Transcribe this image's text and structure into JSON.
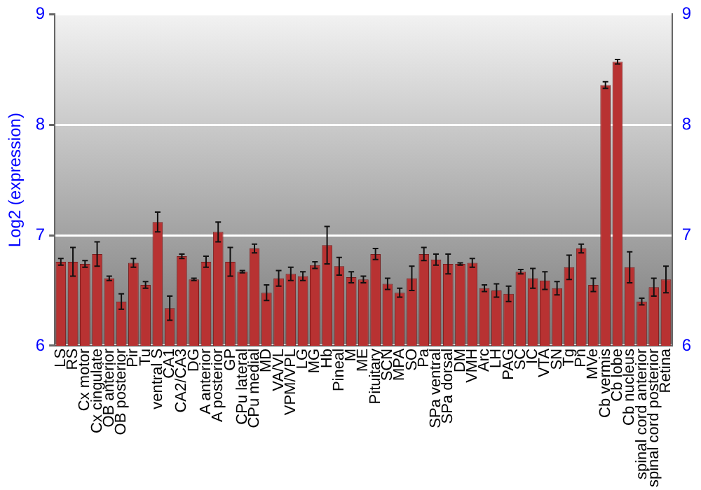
{
  "chart_data": {
    "type": "bar",
    "ylabel": "Log2 (expression)",
    "categories": [
      "LS",
      "RS",
      "Cx motor",
      "Cx cingulate",
      "OB anterior",
      "OB posterior",
      "Pir",
      "Tu",
      "ventral S",
      "CA1",
      "CA2/CA3",
      "DG",
      "A anterior",
      "A posterior",
      "GP",
      "CPu lateral",
      "CPu medial",
      "MD",
      "VA/VL",
      "VPM/VPL",
      "LG",
      "MG",
      "Hb",
      "Pineal",
      "M",
      "ME",
      "Pituitary",
      "SCN",
      "MPA",
      "SO",
      "Pa",
      "SPa ventral",
      "SPa dorsal",
      "DM",
      "VMH",
      "Arc",
      "LH",
      "PAG",
      "SC",
      "IC",
      "VTA",
      "SN",
      "Tg",
      "Pn",
      "MVe",
      "Cb vermis",
      "Cb lobe",
      "Cb nucleus",
      "spinal cord anterior",
      "spinal cord posterior",
      "Retina"
    ],
    "values": [
      6.76,
      6.76,
      6.74,
      6.83,
      6.61,
      6.4,
      6.75,
      6.55,
      7.12,
      6.34,
      6.81,
      6.6,
      6.76,
      7.03,
      6.76,
      6.67,
      6.88,
      6.48,
      6.61,
      6.65,
      6.63,
      6.73,
      6.91,
      6.72,
      6.62,
      6.6,
      6.83,
      6.56,
      6.48,
      6.61,
      6.83,
      6.78,
      6.74,
      6.74,
      6.75,
      6.52,
      6.5,
      6.47,
      6.67,
      6.61,
      6.59,
      6.52,
      6.71,
      6.88,
      6.55,
      8.36,
      8.57,
      6.71,
      6.4,
      6.53,
      6.6
    ],
    "errors": [
      0.03,
      0.13,
      0.03,
      0.11,
      0.02,
      0.07,
      0.04,
      0.03,
      0.09,
      0.11,
      0.02,
      0.01,
      0.05,
      0.09,
      0.13,
      0.01,
      0.04,
      0.07,
      0.07,
      0.06,
      0.04,
      0.03,
      0.17,
      0.08,
      0.05,
      0.03,
      0.05,
      0.05,
      0.04,
      0.11,
      0.06,
      0.05,
      0.09,
      0.01,
      0.04,
      0.03,
      0.06,
      0.07,
      0.02,
      0.09,
      0.08,
      0.06,
      0.11,
      0.04,
      0.06,
      0.03,
      0.02,
      0.14,
      0.03,
      0.08,
      0.12
    ],
    "color": "#b83232",
    "ylim": [
      6,
      9
    ],
    "yticks": [
      6,
      7,
      8,
      9
    ],
    "y2lim": [
      6,
      9
    ],
    "y2ticks": [
      6,
      7,
      8,
      9
    ],
    "grid": "y"
  }
}
